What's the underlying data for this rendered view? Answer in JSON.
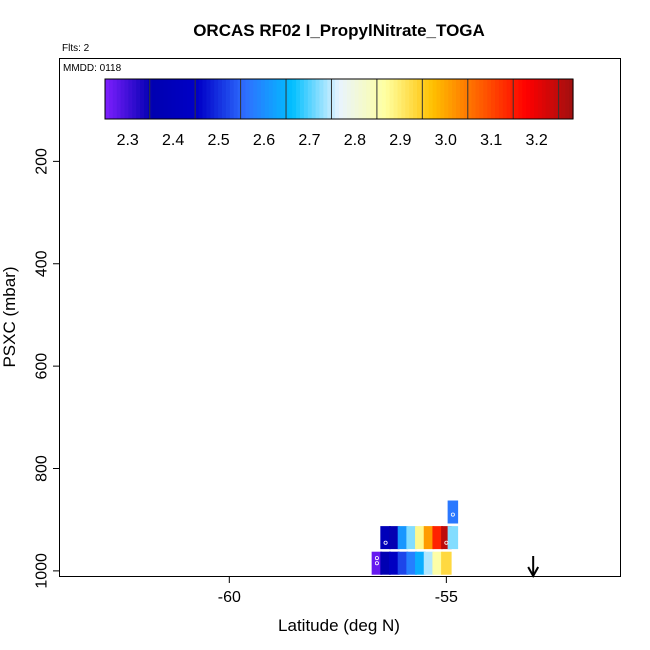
{
  "chart_data": {
    "type": "heatmap",
    "title": "ORCAS RF02 I_PropylNitrate_TOGA",
    "flights_note": "Flts: 2",
    "date_note": "MMDD: 0118",
    "xlabel": "Latitude (deg N)",
    "ylabel": "PSXC (mbar)",
    "xlim": [
      -63.9,
      -51.0
    ],
    "ylim": [
      1010,
      0
    ],
    "y_reversed": true,
    "x_ticks": [
      "-60",
      "-55"
    ],
    "x_tick_values": [
      -60,
      -55
    ],
    "y_ticks": [
      "200",
      "400",
      "600",
      "800",
      "1000"
    ],
    "y_tick_values": [
      200,
      400,
      600,
      800,
      1000
    ],
    "colorbar": {
      "tick_labels": [
        "2.3",
        "2.4",
        "2.5",
        "2.6",
        "2.7",
        "2.8",
        "2.9",
        "3.0",
        "3.1",
        "3.2"
      ],
      "tick_values": [
        2.3,
        2.4,
        2.5,
        2.6,
        2.7,
        2.8,
        2.9,
        3.0,
        3.1,
        3.2
      ],
      "range": [
        2.25,
        3.28
      ],
      "stops": [
        "#7f1fff",
        "#0000b0",
        "#0000c8",
        "#2f6fff",
        "#00bfff",
        "#e8f4ff",
        "#ffffa0",
        "#ffc000",
        "#ff6000",
        "#ff0000",
        "#a01010"
      ]
    },
    "arrow_latitude": -53.0,
    "cells": [
      {
        "lat": -56.6,
        "p": 985,
        "value": 2.27
      },
      {
        "lat": -56.4,
        "p": 985,
        "value": 2.36
      },
      {
        "lat": -56.2,
        "p": 985,
        "value": 2.43
      },
      {
        "lat": -56.0,
        "p": 985,
        "value": 2.52
      },
      {
        "lat": -55.8,
        "p": 985,
        "value": 2.58
      },
      {
        "lat": -55.6,
        "p": 985,
        "value": 2.64
      },
      {
        "lat": -55.4,
        "p": 985,
        "value": 2.74
      },
      {
        "lat": -55.2,
        "p": 985,
        "value": 2.86
      },
      {
        "lat": -55.0,
        "p": 985,
        "value": 2.93
      },
      {
        "lat": -56.4,
        "p": 935,
        "value": 2.39
      },
      {
        "lat": -56.2,
        "p": 935,
        "value": 2.35
      },
      {
        "lat": -56.0,
        "p": 935,
        "value": 2.61
      },
      {
        "lat": -55.8,
        "p": 935,
        "value": 2.72
      },
      {
        "lat": -55.6,
        "p": 935,
        "value": 2.88
      },
      {
        "lat": -55.4,
        "p": 935,
        "value": 3.01
      },
      {
        "lat": -55.2,
        "p": 935,
        "value": 3.14
      },
      {
        "lat": -55.0,
        "p": 935,
        "value": 3.25
      },
      {
        "lat": -54.85,
        "p": 935,
        "value": 2.72
      },
      {
        "lat": -54.85,
        "p": 885,
        "value": 2.57
      }
    ],
    "markers": [
      {
        "lat": -56.6,
        "p": 975
      },
      {
        "lat": -56.6,
        "p": 985
      },
      {
        "lat": -56.4,
        "p": 945
      },
      {
        "lat": -55.0,
        "p": 945
      },
      {
        "lat": -54.85,
        "p": 890
      }
    ]
  }
}
